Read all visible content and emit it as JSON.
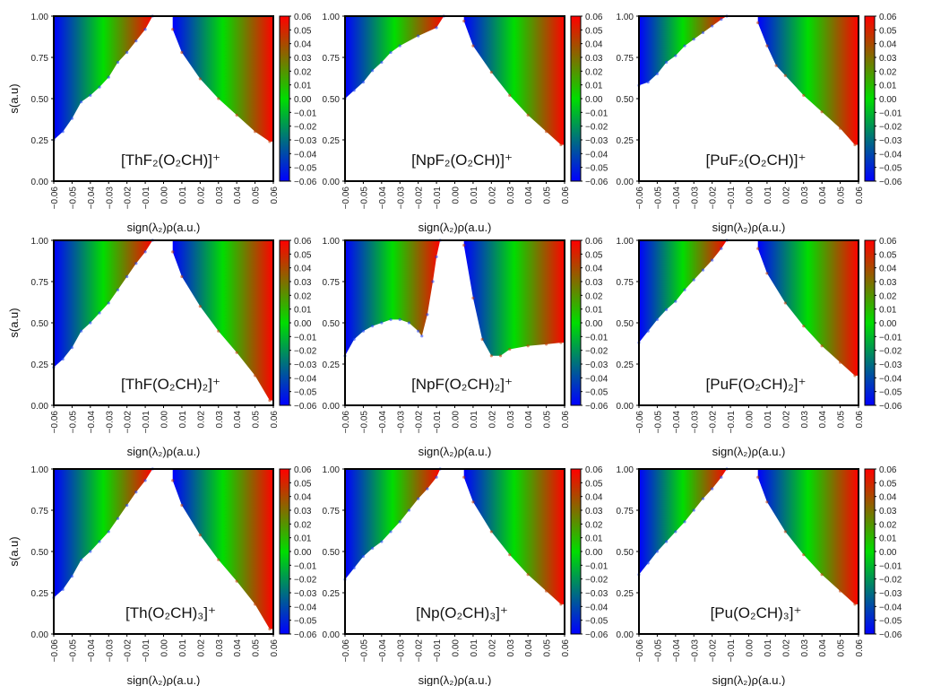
{
  "chart_data": [
    {
      "type": "scatter",
      "title": "[ThF₂(O₂CH)]⁺",
      "xlabel": "sign(λ₂)ρ(a.u.)",
      "ylabel": "s(a.u)",
      "xlim": [
        -0.06,
        0.06
      ],
      "ylim": [
        0,
        1
      ],
      "colorbar": {
        "range": [
          -0.06,
          0.06
        ],
        "colors": [
          "#0000ff",
          "#00dd00",
          "#ff0000"
        ]
      },
      "series": [
        {
          "x": [
            -0.06,
            -0.055,
            -0.05,
            -0.045,
            -0.04,
            -0.035,
            -0.03,
            -0.025,
            -0.02,
            -0.015,
            -0.01,
            -0.006
          ],
          "y": [
            0.25,
            0.3,
            0.38,
            0.48,
            0.52,
            0.57,
            0.63,
            0.72,
            0.78,
            0.85,
            0.92,
            1.0
          ]
        },
        {
          "x": [
            0.005,
            0.01,
            0.02,
            0.03,
            0.04,
            0.05,
            0.058
          ],
          "y": [
            0.92,
            0.78,
            0.62,
            0.5,
            0.4,
            0.3,
            0.24
          ]
        }
      ]
    },
    {
      "type": "scatter",
      "title": "[NpF₂(O₂CH)]⁺",
      "xlabel": "sign(λ₂)ρ(a.u.)",
      "ylabel": "",
      "xlim": [
        -0.06,
        0.06
      ],
      "ylim": [
        0,
        1
      ],
      "colorbar": {
        "range": [
          -0.06,
          0.06
        ],
        "colors": [
          "#0000ff",
          "#00dd00",
          "#ff0000"
        ]
      },
      "series": [
        {
          "x": [
            -0.06,
            -0.055,
            -0.05,
            -0.045,
            -0.04,
            -0.035,
            -0.03,
            -0.02,
            -0.01,
            -0.006
          ],
          "y": [
            0.5,
            0.55,
            0.6,
            0.67,
            0.72,
            0.78,
            0.82,
            0.88,
            0.93,
            1.0
          ]
        },
        {
          "x": [
            0.005,
            0.01,
            0.02,
            0.03,
            0.04,
            0.05,
            0.058
          ],
          "y": [
            0.97,
            0.82,
            0.66,
            0.52,
            0.4,
            0.3,
            0.22
          ]
        }
      ]
    },
    {
      "type": "scatter",
      "title": "[PuF₂(O₂CH)]⁺",
      "xlabel": "sign(λ₂)ρ(a.u.)",
      "ylabel": "",
      "xlim": [
        -0.06,
        0.06
      ],
      "ylim": [
        0,
        1
      ],
      "colorbar": {
        "range": [
          -0.06,
          0.06
        ],
        "colors": [
          "#0000ff",
          "#00dd00",
          "#ff0000"
        ]
      },
      "series": [
        {
          "x": [
            -0.06,
            -0.055,
            -0.05,
            -0.045,
            -0.04,
            -0.035,
            -0.03,
            -0.025,
            -0.02,
            -0.015,
            -0.012
          ],
          "y": [
            0.58,
            0.6,
            0.65,
            0.72,
            0.76,
            0.82,
            0.86,
            0.9,
            0.94,
            0.98,
            1.0
          ]
        },
        {
          "x": [
            0.005,
            0.01,
            0.015,
            0.02,
            0.03,
            0.04,
            0.05,
            0.058
          ],
          "y": [
            0.96,
            0.82,
            0.7,
            0.64,
            0.52,
            0.42,
            0.32,
            0.22
          ]
        }
      ]
    },
    {
      "type": "scatter",
      "title": "[ThF(O₂CH)₂]⁺",
      "xlabel": "sign(λ₂)ρ(a.u.)",
      "ylabel": "s(a.u)",
      "xlim": [
        -0.06,
        0.06
      ],
      "ylim": [
        0,
        1
      ],
      "colorbar": {
        "range": [
          -0.06,
          0.06
        ],
        "colors": [
          "#0000ff",
          "#00dd00",
          "#ff0000"
        ]
      },
      "series": [
        {
          "x": [
            -0.06,
            -0.055,
            -0.05,
            -0.045,
            -0.04,
            -0.035,
            -0.03,
            -0.025,
            -0.02,
            -0.015,
            -0.01,
            -0.006
          ],
          "y": [
            0.23,
            0.28,
            0.35,
            0.45,
            0.5,
            0.56,
            0.62,
            0.7,
            0.78,
            0.86,
            0.93,
            1.0
          ]
        },
        {
          "x": [
            0.005,
            0.01,
            0.02,
            0.03,
            0.04,
            0.05,
            0.058
          ],
          "y": [
            0.93,
            0.78,
            0.6,
            0.45,
            0.32,
            0.18,
            0.03
          ]
        }
      ]
    },
    {
      "type": "scatter",
      "title": "[NpF(O₂CH)₂]⁺",
      "xlabel": "sign(λ₂)ρ(a.u.)",
      "ylabel": "",
      "xlim": [
        -0.06,
        0.06
      ],
      "ylim": [
        0,
        1
      ],
      "colorbar": {
        "range": [
          -0.06,
          0.06
        ],
        "colors": [
          "#0000ff",
          "#00dd00",
          "#ff0000"
        ]
      },
      "series": [
        {
          "x": [
            -0.06,
            -0.055,
            -0.05,
            -0.045,
            -0.04,
            -0.035,
            -0.03,
            -0.025,
            -0.02,
            -0.018,
            -0.015,
            -0.012,
            -0.01,
            -0.008
          ],
          "y": [
            0.3,
            0.4,
            0.45,
            0.48,
            0.5,
            0.52,
            0.52,
            0.5,
            0.45,
            0.42,
            0.55,
            0.75,
            0.9,
            1.0
          ]
        },
        {
          "x": [
            0.005,
            0.01,
            0.015,
            0.02,
            0.025,
            0.03,
            0.04,
            0.05,
            0.058
          ],
          "y": [
            0.97,
            0.65,
            0.4,
            0.3,
            0.3,
            0.34,
            0.36,
            0.37,
            0.38
          ]
        }
      ]
    },
    {
      "type": "scatter",
      "title": "[PuF(O₂CH)₂]⁺",
      "xlabel": "sign(λ₂)ρ(a.u.)",
      "ylabel": "",
      "xlim": [
        -0.06,
        0.06
      ],
      "ylim": [
        0,
        1
      ],
      "colorbar": {
        "range": [
          -0.06,
          0.06
        ],
        "colors": [
          "#0000ff",
          "#00dd00",
          "#ff0000"
        ]
      },
      "series": [
        {
          "x": [
            -0.06,
            -0.055,
            -0.05,
            -0.045,
            -0.04,
            -0.035,
            -0.03,
            -0.025,
            -0.02,
            -0.015,
            -0.012
          ],
          "y": [
            0.38,
            0.45,
            0.52,
            0.58,
            0.63,
            0.7,
            0.76,
            0.82,
            0.88,
            0.95,
            1.0
          ]
        },
        {
          "x": [
            0.005,
            0.01,
            0.02,
            0.03,
            0.04,
            0.05,
            0.058
          ],
          "y": [
            0.95,
            0.8,
            0.62,
            0.48,
            0.36,
            0.26,
            0.18
          ]
        }
      ]
    },
    {
      "type": "scatter",
      "title": "[Th(O₂CH)₃]⁺",
      "xlabel": "sign(λ₂)ρ(a.u.)",
      "ylabel": "s(a.u)",
      "xlim": [
        -0.06,
        0.06
      ],
      "ylim": [
        0,
        1
      ],
      "colorbar": {
        "range": [
          -0.06,
          0.06
        ],
        "colors": [
          "#0000ff",
          "#00dd00",
          "#ff0000"
        ]
      },
      "series": [
        {
          "x": [
            -0.06,
            -0.055,
            -0.05,
            -0.045,
            -0.04,
            -0.035,
            -0.03,
            -0.025,
            -0.02,
            -0.015,
            -0.01,
            -0.006
          ],
          "y": [
            0.22,
            0.27,
            0.35,
            0.45,
            0.5,
            0.56,
            0.62,
            0.7,
            0.78,
            0.86,
            0.93,
            1.0
          ]
        },
        {
          "x": [
            0.005,
            0.01,
            0.02,
            0.03,
            0.04,
            0.05,
            0.058
          ],
          "y": [
            0.93,
            0.78,
            0.6,
            0.45,
            0.32,
            0.18,
            0.03
          ]
        }
      ]
    },
    {
      "type": "scatter",
      "title": "[Np(O₂CH)₃]⁺",
      "xlabel": "sign(λ₂)ρ(a.u.)",
      "ylabel": "",
      "xlim": [
        -0.06,
        0.06
      ],
      "ylim": [
        0,
        1
      ],
      "colorbar": {
        "range": [
          -0.06,
          0.06
        ],
        "colors": [
          "#0000ff",
          "#00dd00",
          "#ff0000"
        ]
      },
      "series": [
        {
          "x": [
            -0.06,
            -0.055,
            -0.05,
            -0.045,
            -0.04,
            -0.035,
            -0.03,
            -0.025,
            -0.02,
            -0.015,
            -0.01,
            -0.008
          ],
          "y": [
            0.33,
            0.4,
            0.47,
            0.52,
            0.56,
            0.62,
            0.68,
            0.75,
            0.82,
            0.88,
            0.95,
            1.0
          ]
        },
        {
          "x": [
            0.005,
            0.01,
            0.02,
            0.03,
            0.04,
            0.05,
            0.058
          ],
          "y": [
            0.95,
            0.8,
            0.62,
            0.48,
            0.36,
            0.26,
            0.18
          ]
        }
      ]
    },
    {
      "type": "scatter",
      "title": "[Pu(O₂CH)₃]⁺",
      "xlabel": "sign(λ₂)ρ(a.u.)",
      "ylabel": "",
      "xlim": [
        -0.06,
        0.06
      ],
      "ylim": [
        0,
        1
      ],
      "colorbar": {
        "range": [
          -0.06,
          0.06
        ],
        "colors": [
          "#0000ff",
          "#00dd00",
          "#ff0000"
        ]
      },
      "series": [
        {
          "x": [
            -0.06,
            -0.055,
            -0.05,
            -0.045,
            -0.04,
            -0.035,
            -0.03,
            -0.025,
            -0.02,
            -0.015,
            -0.012
          ],
          "y": [
            0.36,
            0.43,
            0.5,
            0.56,
            0.62,
            0.68,
            0.75,
            0.82,
            0.88,
            0.95,
            1.0
          ]
        },
        {
          "x": [
            0.005,
            0.01,
            0.02,
            0.03,
            0.04,
            0.05,
            0.058
          ],
          "y": [
            0.95,
            0.8,
            0.62,
            0.48,
            0.36,
            0.26,
            0.18
          ]
        }
      ]
    }
  ],
  "x_ticks": [
    "−0.06",
    "−0.05",
    "−0.04",
    "−0.03",
    "−0.02",
    "−0.01",
    "0.00",
    "0.01",
    "0.02",
    "0.03",
    "0.04",
    "0.05",
    "0.06"
  ],
  "y_ticks": [
    "0.00",
    "0.25",
    "0.50",
    "0.75",
    "1.00"
  ],
  "colorbar_ticks": [
    "0.06",
    "0.05",
    "0.04",
    "0.03",
    "0.02",
    "0.01",
    "0.00",
    "−0.01",
    "−0.02",
    "−0.03",
    "−0.04",
    "−0.05",
    "−0.06"
  ]
}
